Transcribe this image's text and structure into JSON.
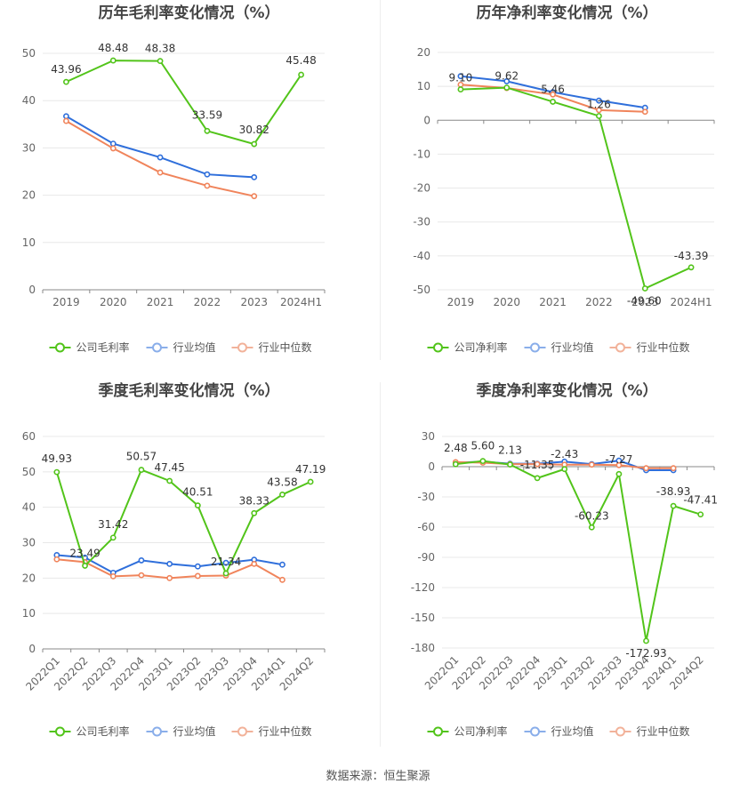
{
  "source_text": "数据来源：恒生聚源",
  "colors": {
    "company": "#52c41a",
    "avg": "#2f6fdb",
    "median": "#f0845b",
    "legend_avg": "#8aaeea",
    "legend_median": "#f2b29a"
  },
  "chart_data": [
    {
      "type": "line",
      "title": "历年毛利率变化情况（%）",
      "categories": [
        "2019",
        "2020",
        "2021",
        "2022",
        "2023",
        "2024H1"
      ],
      "ylim": [
        0,
        50
      ],
      "yticks": [
        0,
        10,
        20,
        30,
        40,
        50
      ],
      "grid": true,
      "legend_position": "bottom",
      "series": [
        {
          "name": "公司毛利率",
          "role": "company",
          "values": [
            43.96,
            48.48,
            48.38,
            33.59,
            30.82,
            45.48
          ],
          "labels": [
            "43.96",
            "48.48",
            "48.38",
            "33.59",
            "30.82",
            "45.48"
          ]
        },
        {
          "name": "行业均值",
          "role": "avg",
          "values": [
            36.7,
            30.9,
            28.0,
            24.4,
            23.8,
            null
          ]
        },
        {
          "name": "行业中位数",
          "role": "median",
          "values": [
            35.7,
            29.9,
            24.8,
            22.0,
            19.8,
            null
          ]
        }
      ]
    },
    {
      "type": "line",
      "title": "历年净利率变化情况（%）",
      "categories": [
        "2019",
        "2020",
        "2021",
        "2022",
        "2023",
        "2024H1"
      ],
      "ylim": [
        -50,
        20
      ],
      "yticks": [
        -50,
        -40,
        -30,
        -20,
        -10,
        0,
        10,
        20
      ],
      "grid": true,
      "legend_position": "bottom",
      "series": [
        {
          "name": "公司净利率",
          "role": "company",
          "values": [
            9.1,
            9.62,
            5.46,
            1.26,
            -49.6,
            -43.39
          ],
          "labels": [
            "9.10",
            "9.62",
            "5.46",
            "1.26",
            "-49.60",
            "-43.39"
          ]
        },
        {
          "name": "行业均值",
          "role": "avg",
          "values": [
            13.0,
            11.5,
            8.3,
            5.8,
            3.7,
            null
          ]
        },
        {
          "name": "行业中位数",
          "role": "median",
          "values": [
            10.5,
            9.5,
            7.6,
            3.0,
            2.5,
            null
          ]
        }
      ]
    },
    {
      "type": "line",
      "title": "季度毛利率变化情况（%）",
      "categories": [
        "2022Q1",
        "2022Q2",
        "2022Q3",
        "2022Q4",
        "2023Q1",
        "2023Q2",
        "2023Q3",
        "2023Q4",
        "2024Q1",
        "2024Q2"
      ],
      "ylim": [
        0,
        60
      ],
      "yticks": [
        0,
        10,
        20,
        30,
        40,
        50,
        60
      ],
      "grid": true,
      "legend_position": "bottom",
      "series": [
        {
          "name": "公司毛利率",
          "role": "company",
          "values": [
            49.93,
            23.49,
            31.42,
            50.57,
            47.45,
            40.51,
            21.34,
            38.33,
            43.58,
            47.19
          ],
          "labels": [
            "49.93",
            "23.49",
            "31.42",
            "50.57",
            "47.45",
            "40.51",
            "21.34",
            "38.33",
            "43.58",
            "47.19"
          ]
        },
        {
          "name": "行业均值",
          "role": "avg",
          "values": [
            26.5,
            25.8,
            21.5,
            25.0,
            24.0,
            23.3,
            24.3,
            25.2,
            23.8,
            null
          ]
        },
        {
          "name": "行业中位数",
          "role": "median",
          "values": [
            25.3,
            24.5,
            20.5,
            20.8,
            20.0,
            20.6,
            20.7,
            24.0,
            19.5,
            null
          ]
        }
      ]
    },
    {
      "type": "line",
      "title": "季度净利率变化情况（%）",
      "categories": [
        "2022Q1",
        "2022Q2",
        "2022Q3",
        "2022Q4",
        "2023Q1",
        "2023Q2",
        "2023Q3",
        "2023Q4",
        "2024Q1",
        "2024Q2"
      ],
      "ylim": [
        -180,
        30
      ],
      "yticks": [
        -180,
        -150,
        -120,
        -90,
        -60,
        -30,
        0,
        30
      ],
      "grid": true,
      "legend_position": "bottom",
      "series": [
        {
          "name": "公司净利率",
          "role": "company",
          "values": [
            2.48,
            5.6,
            2.13,
            -11.35,
            -2.43,
            -60.23,
            -7.27,
            -172.93,
            -38.93,
            -47.41
          ],
          "labels": [
            "2.48",
            "5.60",
            "2.13",
            "-11.35",
            "-2.43",
            "-60.23",
            "-7.27",
            "-172.93",
            "-38.93",
            "-47.41"
          ]
        },
        {
          "name": "行业均值",
          "role": "avg",
          "values": [
            4.0,
            5.0,
            3.0,
            3.0,
            5.0,
            2.5,
            6.0,
            -3.5,
            -3.5,
            null
          ]
        },
        {
          "name": "行业中位数",
          "role": "median",
          "values": [
            4.5,
            4.0,
            2.5,
            2.5,
            2.0,
            2.0,
            1.5,
            -1.5,
            -1.5,
            null
          ]
        }
      ]
    }
  ]
}
